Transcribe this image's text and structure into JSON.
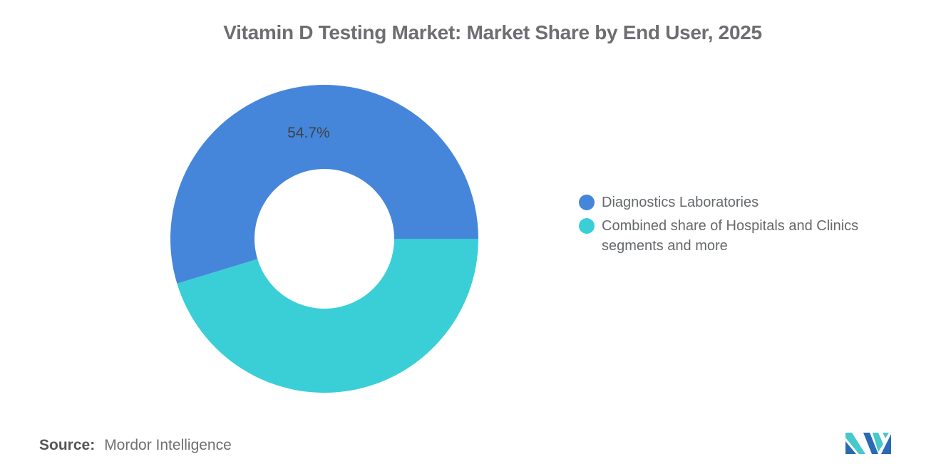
{
  "title": "Vitamin D Testing Market: Market Share by End User, 2025",
  "chart_data": {
    "type": "pie",
    "title": "Vitamin D Testing Market: Market Share by End User, 2025",
    "donut": true,
    "inner_radius_ratio": 0.456,
    "start_angle_deg": 0,
    "direction": "counterclockwise",
    "legend_position": "right",
    "slices": [
      {
        "label": "Diagnostics Laboratories",
        "value": 54.7,
        "data_label": "54.7%",
        "color": "#4586DB"
      },
      {
        "label": "Combined share of Hospitals and Clinics segments and more",
        "value": 45.3,
        "data_label": "",
        "color": "#3ACFD6"
      }
    ]
  },
  "source": {
    "label": "Source:",
    "text": "Mordor Intelligence"
  },
  "logo": {
    "name": "mordor-intelligence-logo",
    "blue": "#2A6AB4",
    "teal": "#47C8CB"
  }
}
